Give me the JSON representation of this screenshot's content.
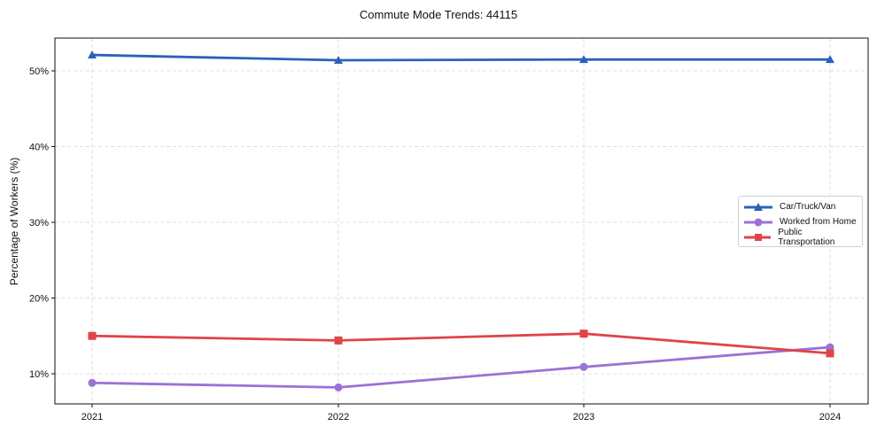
{
  "chart_data": {
    "type": "line",
    "title": "Commute Mode Trends: 44115",
    "xlabel": "",
    "ylabel": "Percentage of Workers (%)",
    "x": [
      "2021",
      "2022",
      "2023",
      "2024"
    ],
    "yticks": [
      "10%",
      "20%",
      "30%",
      "40%",
      "50%"
    ],
    "ylim": [
      6.2,
      54.3
    ],
    "grid": true,
    "legend_position": "center right",
    "series": [
      {
        "name": "Car/Truck/Van",
        "color": "#2a62b8",
        "marker": "triangle",
        "values": [
          52.1,
          51.4,
          51.5,
          51.5
        ]
      },
      {
        "name": "Worked from Home",
        "color": "#9b72d6",
        "marker": "circle",
        "values": [
          8.8,
          8.2,
          10.9,
          13.5
        ]
      },
      {
        "name": "Public Transportation",
        "color": "#e04448",
        "marker": "square",
        "values": [
          15.0,
          14.4,
          15.3,
          12.7
        ]
      }
    ]
  }
}
